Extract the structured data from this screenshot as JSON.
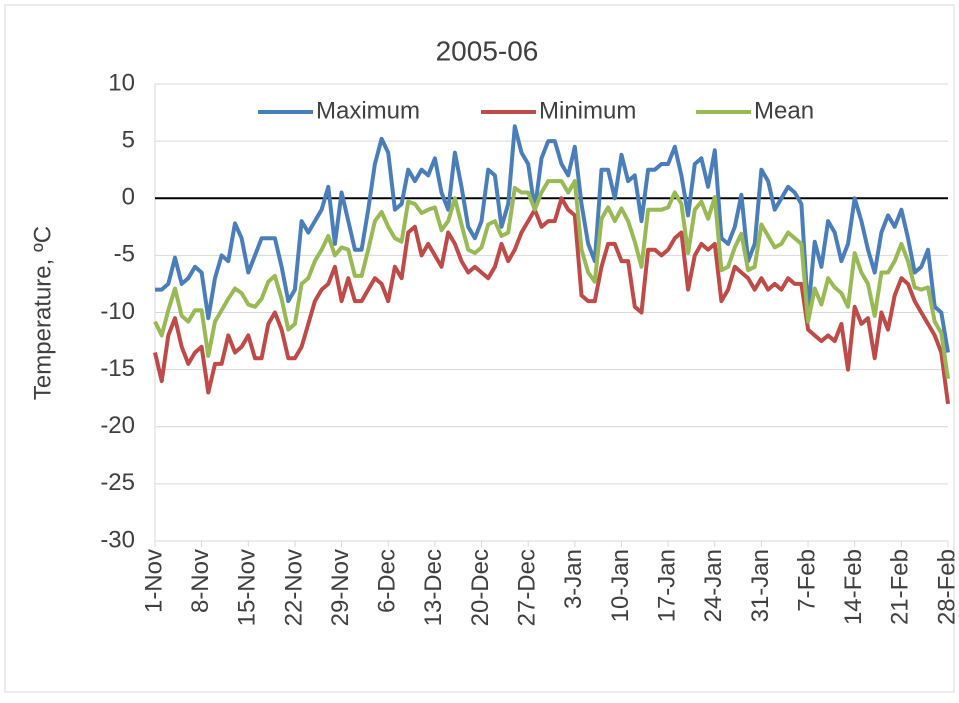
{
  "chart_data": {
    "type": "line",
    "title": "2005-06",
    "y_label": "Temperature, ºC",
    "categories": [
      "1-Nov",
      null,
      null,
      null,
      null,
      null,
      null,
      "8-Nov",
      null,
      null,
      null,
      null,
      null,
      null,
      "15-Nov",
      null,
      null,
      null,
      null,
      null,
      null,
      "22-Nov",
      null,
      null,
      null,
      null,
      null,
      null,
      "29-Nov",
      null,
      null,
      null,
      null,
      null,
      null,
      "6-Dec",
      null,
      null,
      null,
      null,
      null,
      null,
      "13-Dec",
      null,
      null,
      null,
      null,
      null,
      null,
      "20-Dec",
      null,
      null,
      null,
      null,
      null,
      null,
      "27-Dec",
      null,
      null,
      null,
      null,
      null,
      null,
      "3-Jan",
      null,
      null,
      null,
      null,
      null,
      null,
      "10-Jan",
      null,
      null,
      null,
      null,
      null,
      null,
      "17-Jan",
      null,
      null,
      null,
      null,
      null,
      null,
      "24-Jan",
      null,
      null,
      null,
      null,
      null,
      null,
      "31-Jan",
      null,
      null,
      null,
      null,
      null,
      null,
      "7-Feb",
      null,
      null,
      null,
      null,
      null,
      null,
      "14-Feb",
      null,
      null,
      null,
      null,
      null,
      null,
      "21-Feb",
      null,
      null,
      null,
      null,
      null,
      null,
      "28-Feb"
    ],
    "series": [
      {
        "name": "Maximum",
        "color": "#4a7ebb",
        "values": [
          -8,
          -8,
          -7.5,
          -5.2,
          -7.5,
          -7,
          -6,
          -6.5,
          -10.5,
          -7,
          -5,
          -5.5,
          -2.2,
          -3.5,
          -6.5,
          -5,
          -3.5,
          -3.5,
          -3.5,
          -6,
          -9,
          -8,
          -2,
          -3,
          -2,
          -1,
          1,
          -4,
          0.5,
          -2,
          -4.5,
          -4.5,
          -1,
          3,
          5.2,
          4,
          -1,
          -0.5,
          2.5,
          1.5,
          2.5,
          2,
          3.5,
          0.5,
          -1,
          4,
          1,
          -2.5,
          -3.5,
          -2,
          2.5,
          2,
          -2.5,
          -0.5,
          6.3,
          4,
          3,
          -1,
          3.5,
          5,
          5,
          3,
          2,
          4.5,
          -0.5,
          -4,
          -5.5,
          2.5,
          2.5,
          0,
          3.8,
          1.5,
          2,
          -2,
          2.5,
          2.5,
          3,
          3,
          4.5,
          2,
          -1.5,
          3,
          3.5,
          1,
          4.2,
          -3.5,
          -4,
          -2.5,
          0.3,
          -5.5,
          -4,
          2.5,
          1.5,
          -1,
          0,
          1,
          0.5,
          -0.5,
          -10,
          -3.8,
          -6,
          -2,
          -3,
          -5.5,
          -4,
          0,
          -2,
          -4.5,
          -6.5,
          -3,
          -1.5,
          -2.5,
          -1,
          -3.5,
          -6.5,
          -6,
          -4.5,
          -9.5,
          -10,
          -13.5
        ]
      },
      {
        "name": "Minimum",
        "color": "#be4b48",
        "values": [
          -13.5,
          -16,
          -12,
          -10.5,
          -13,
          -14.5,
          -13.5,
          -13,
          -17,
          -14.5,
          -14.5,
          -12,
          -13.5,
          -13,
          -12,
          -14,
          -14,
          -11,
          -10,
          -11.5,
          -14,
          -14,
          -13,
          -11,
          -9,
          -8,
          -7.5,
          -6,
          -9,
          -7,
          -9,
          -9,
          -8,
          -7,
          -7.5,
          -9,
          -6,
          -7,
          -3,
          -2.5,
          -5,
          -4,
          -5,
          -6,
          -3,
          -4,
          -5.5,
          -6.5,
          -6,
          -6.5,
          -7,
          -6,
          -4,
          -5.5,
          -4.5,
          -3,
          -2,
          -1,
          -2.5,
          -2,
          -2,
          0,
          -1,
          -1.5,
          -8.5,
          -9,
          -9,
          -6,
          -4,
          -4,
          -5.5,
          -5.5,
          -9.5,
          -10,
          -4.5,
          -4.5,
          -5,
          -4.5,
          -3.5,
          -3,
          -8,
          -5,
          -4,
          -4.5,
          -4,
          -9,
          -8,
          -6,
          -6.5,
          -7,
          -8,
          -7,
          -8,
          -7.5,
          -8,
          -7,
          -7.5,
          -7.5,
          -11.5,
          -12,
          -12.5,
          -12,
          -12.5,
          -11,
          -15,
          -9.5,
          -11,
          -10.5,
          -14,
          -10,
          -11.5,
          -8.5,
          -7,
          -7.5,
          -9,
          -10,
          -11,
          -12,
          -13.5,
          -18
        ]
      },
      {
        "name": "Mean",
        "color": "#98b954",
        "values": [
          -10.8,
          -12,
          -9.8,
          -7.9,
          -10.3,
          -10.8,
          -9.8,
          -9.8,
          -13.8,
          -10.8,
          -9.8,
          -8.8,
          -7.9,
          -8.3,
          -9.3,
          -9.5,
          -8.8,
          -7.3,
          -6.8,
          -8.8,
          -11.5,
          -11,
          -7.5,
          -7,
          -5.5,
          -4.5,
          -3.3,
          -5,
          -4.3,
          -4.5,
          -6.8,
          -6.8,
          -4.5,
          -2,
          -1.2,
          -2.5,
          -3.5,
          -3.8,
          -0.3,
          -0.5,
          -1.3,
          -1,
          -0.8,
          -2.8,
          -2,
          0,
          -2.3,
          -4.5,
          -4.8,
          -4.3,
          -2.3,
          -2,
          -3.3,
          -3,
          0.9,
          0.5,
          0.5,
          -1,
          0.5,
          1.5,
          1.5,
          1.5,
          0.5,
          1.5,
          -4.5,
          -6.5,
          -7.3,
          -1.8,
          -0.8,
          -2,
          -0.9,
          -2,
          -3.8,
          -6,
          -1,
          -1,
          -1,
          -0.8,
          0.5,
          -0.5,
          -4.8,
          -1,
          -0.3,
          -1.8,
          0.1,
          -6.3,
          -6,
          -4.3,
          -3.1,
          -6.3,
          -6,
          -2.3,
          -3.3,
          -4.3,
          -4,
          -3,
          -3.5,
          -4,
          -10.8,
          -7.9,
          -9.3,
          -7,
          -7.8,
          -8.3,
          -9.5,
          -4.8,
          -6.5,
          -7.5,
          -10.3,
          -6.5,
          -6.5,
          -5.5,
          -4,
          -5.5,
          -7.8,
          -8,
          -7.8,
          -10.8,
          -11.8,
          -15.8
        ]
      }
    ],
    "ylim": [
      -30,
      10
    ],
    "yticks": [
      10,
      5,
      0,
      -5,
      -10,
      -15,
      -20,
      -25,
      -30
    ],
    "grid": true,
    "legend": "top"
  }
}
